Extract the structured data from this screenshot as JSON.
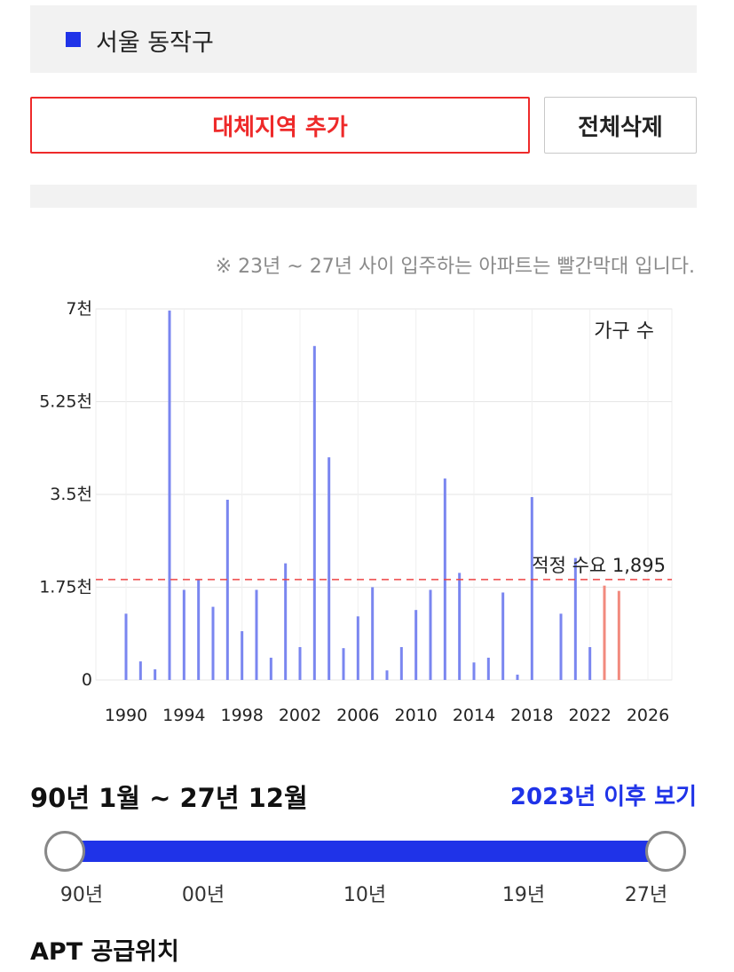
{
  "region": {
    "name": "서울 동작구",
    "color": "#1f33e8"
  },
  "buttons": {
    "add_label": "대체지역 추가",
    "clear_label": "전체삭제"
  },
  "note": "※ 23년 ~ 27년 사이 입주하는 아파트는 빨간막대 입니다.",
  "chart_data": {
    "type": "bar",
    "legend": "가구 수",
    "ylim": [
      0,
      7000
    ],
    "xlim": [
      1990,
      2026
    ],
    "y_ticks": [
      {
        "value": 0,
        "label": "0"
      },
      {
        "value": 1750,
        "label": "1.75천"
      },
      {
        "value": 3500,
        "label": "3.5천"
      },
      {
        "value": 5250,
        "label": "5.25천"
      },
      {
        "value": 7000,
        "label": "7천"
      }
    ],
    "x_ticks": [
      1990,
      1994,
      1998,
      2002,
      2006,
      2010,
      2014,
      2018,
      2022,
      2026
    ],
    "grid": true,
    "reference_line": {
      "value": 1895,
      "label": "적정 수요 1,895",
      "color": "#ee4444"
    },
    "colors": {
      "normal": "#7a86f0",
      "future": "#f28a7e"
    },
    "bars": [
      {
        "x": 1990,
        "value": 1250,
        "future": false
      },
      {
        "x": 1991,
        "value": 350,
        "future": false
      },
      {
        "x": 1992,
        "value": 200,
        "future": false
      },
      {
        "x": 1993,
        "value": 6970,
        "future": false
      },
      {
        "x": 1994,
        "value": 1700,
        "future": false
      },
      {
        "x": 1995,
        "value": 1900,
        "future": false
      },
      {
        "x": 1996,
        "value": 1380,
        "future": false
      },
      {
        "x": 1997,
        "value": 3400,
        "future": false
      },
      {
        "x": 1998,
        "value": 920,
        "future": false
      },
      {
        "x": 1999,
        "value": 1700,
        "future": false
      },
      {
        "x": 2000,
        "value": 420,
        "future": false
      },
      {
        "x": 2001,
        "value": 2200,
        "future": false
      },
      {
        "x": 2002,
        "value": 620,
        "future": false
      },
      {
        "x": 2003,
        "value": 6300,
        "future": false
      },
      {
        "x": 2004,
        "value": 4200,
        "future": false
      },
      {
        "x": 2005,
        "value": 600,
        "future": false
      },
      {
        "x": 2006,
        "value": 1200,
        "future": false
      },
      {
        "x": 2007,
        "value": 1750,
        "future": false
      },
      {
        "x": 2008,
        "value": 180,
        "future": false
      },
      {
        "x": 2009,
        "value": 620,
        "future": false
      },
      {
        "x": 2010,
        "value": 1320,
        "future": false
      },
      {
        "x": 2011,
        "value": 1700,
        "future": false
      },
      {
        "x": 2012,
        "value": 3800,
        "future": false
      },
      {
        "x": 2013,
        "value": 2020,
        "future": false
      },
      {
        "x": 2014,
        "value": 330,
        "future": false
      },
      {
        "x": 2015,
        "value": 420,
        "future": false
      },
      {
        "x": 2016,
        "value": 1650,
        "future": false
      },
      {
        "x": 2017,
        "value": 100,
        "future": false
      },
      {
        "x": 2018,
        "value": 3450,
        "future": false
      },
      {
        "x": 2020,
        "value": 1250,
        "future": false
      },
      {
        "x": 2021,
        "value": 2300,
        "future": false
      },
      {
        "x": 2022,
        "value": 620,
        "future": false
      },
      {
        "x": 2023,
        "value": 1780,
        "future": true
      },
      {
        "x": 2024,
        "value": 1680,
        "future": true
      }
    ]
  },
  "period": {
    "range_text": "90년 1월 ~ 27년 12월",
    "after_label": "2023년 이후 보기"
  },
  "slider": {
    "value_start": "90년",
    "value_end": "27년",
    "labels": [
      "90년",
      "00년",
      "10년",
      "19년",
      "27년"
    ]
  },
  "section_title": "APT 공급위치"
}
